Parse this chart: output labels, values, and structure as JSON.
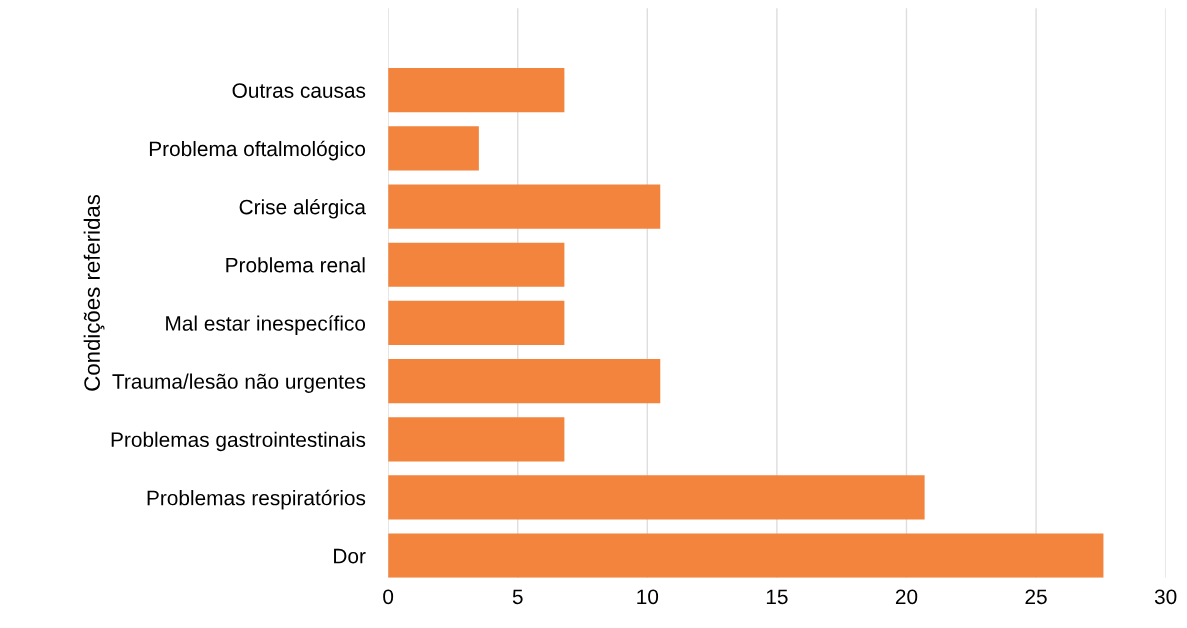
{
  "chart_data": {
    "type": "bar",
    "orientation": "horizontal",
    "ylabel": "Condições referidas",
    "categories": [
      "Outras causas",
      "Problema oftalmológico",
      "Crise alérgica",
      "Problema renal",
      "Mal estar inespecífico",
      "Trauma/lesão não urgentes",
      "Problemas gastrointestinais",
      "Problemas respiratórios",
      "Dor"
    ],
    "values": [
      6.8,
      3.5,
      10.5,
      6.8,
      6.8,
      10.5,
      6.8,
      20.7,
      27.6
    ],
    "color": "#f2843e",
    "xlim": [
      0,
      30
    ],
    "xticks": [
      0,
      5,
      10,
      15,
      20,
      25,
      30
    ],
    "grid": "x"
  }
}
